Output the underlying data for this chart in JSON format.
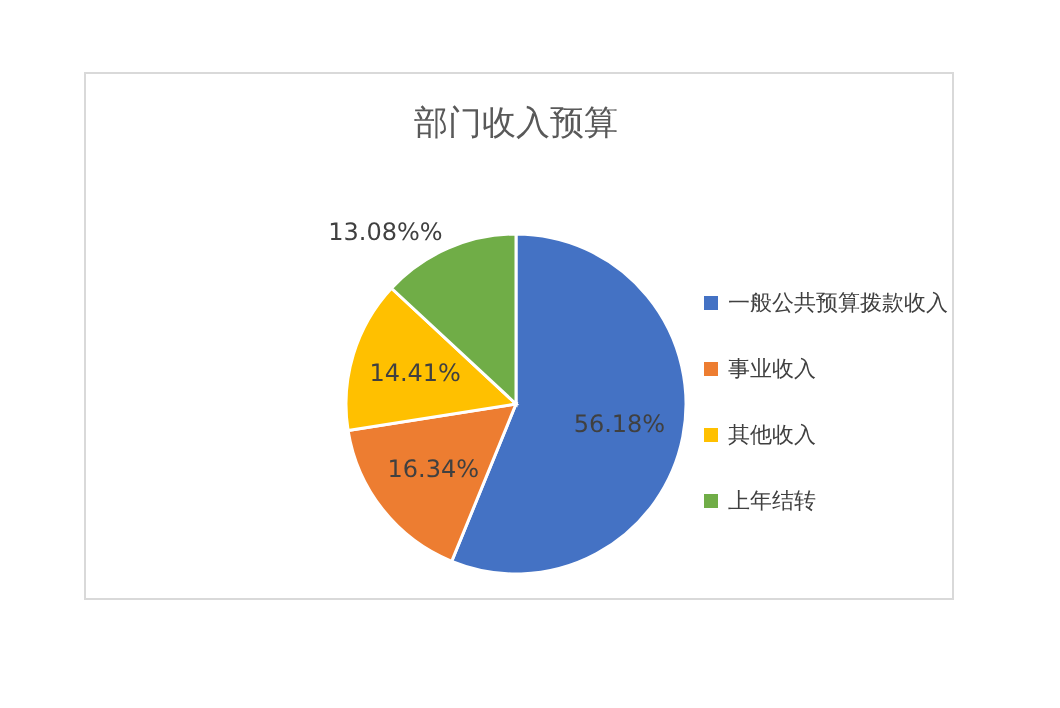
{
  "chart_data": {
    "type": "pie",
    "title": "部门收入预算",
    "categories": [
      "一般公共预算拨款收入",
      "事业收入",
      "其他收入",
      "上年结转"
    ],
    "values": [
      56.18,
      16.34,
      14.41,
      13.08
    ],
    "value_labels": [
      "56.18%",
      "16.34%",
      "14.41%",
      "13.08%%"
    ],
    "colors": [
      "#4472c4",
      "#ed7d31",
      "#ffc000",
      "#70ad47"
    ],
    "legend": "right"
  }
}
